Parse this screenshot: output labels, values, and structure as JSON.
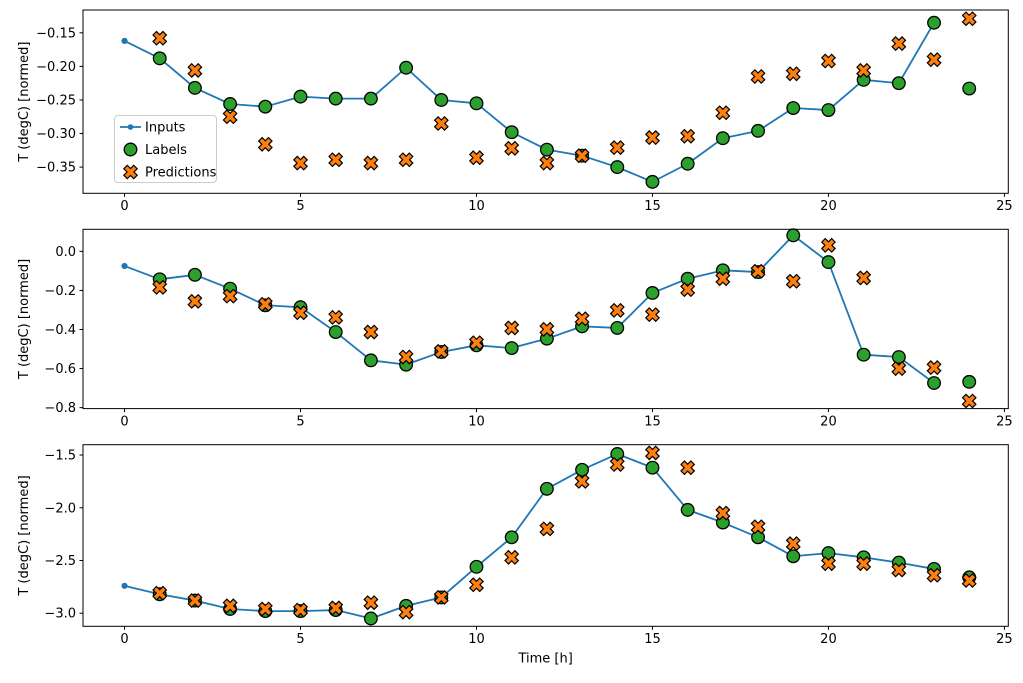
{
  "figure": {
    "xlabel": "Time [h]",
    "ylabel": "T (degC) [normed]"
  },
  "colors": {
    "inputs": "#1f77b4",
    "labels": "#2ca02c",
    "predictions": "#ff7f0e",
    "marker_edge": "#000000",
    "legend_border": "#cccccc",
    "spine": "#000000"
  },
  "legend": {
    "entries": [
      "Inputs",
      "Labels",
      "Predictions"
    ],
    "position": "center-left-of-first-subplot"
  },
  "chart_data": [
    {
      "type": "line",
      "title": "",
      "xlabel": "",
      "ylabel": "T (degC) [normed]",
      "xlim": [
        -1.18,
        25.11
      ],
      "ylim": [
        -0.389,
        -0.116
      ],
      "xticks": [
        0,
        5,
        10,
        15,
        20,
        25
      ],
      "xtick_labels": [
        "0",
        "5",
        "10",
        "15",
        "20",
        "25"
      ],
      "yticks": [
        -0.15,
        -0.2,
        -0.25,
        -0.3,
        -0.35
      ],
      "ytick_labels": [
        "−0.15",
        "−0.20",
        "−0.25",
        "−0.30",
        "−0.35"
      ],
      "grid": false,
      "legend": true,
      "series": [
        {
          "name": "Inputs",
          "kind": "line-dot",
          "color": "#1f77b4",
          "x": [
            0,
            1,
            2,
            3,
            4,
            5,
            6,
            7,
            8,
            9,
            10,
            11,
            12,
            13,
            14,
            15,
            16,
            17,
            18,
            19,
            20,
            21,
            22,
            23
          ],
          "y": [
            -0.162,
            -0.188,
            -0.232,
            -0.256,
            -0.26,
            -0.245,
            -0.248,
            -0.248,
            -0.202,
            -0.25,
            -0.255,
            -0.298,
            -0.324,
            -0.333,
            -0.35,
            -0.372,
            -0.345,
            -0.307,
            -0.296,
            -0.262,
            -0.265,
            -0.22,
            -0.225,
            -0.135
          ]
        },
        {
          "name": "Labels",
          "kind": "scatter-circle",
          "color": "#2ca02c",
          "edge": "#000000",
          "x": [
            1,
            2,
            3,
            4,
            5,
            6,
            7,
            8,
            9,
            10,
            11,
            12,
            13,
            14,
            15,
            16,
            17,
            18,
            19,
            20,
            21,
            22,
            23,
            24
          ],
          "y": [
            -0.188,
            -0.232,
            -0.256,
            -0.26,
            -0.245,
            -0.248,
            -0.248,
            -0.202,
            -0.25,
            -0.255,
            -0.298,
            -0.324,
            -0.333,
            -0.35,
            -0.372,
            -0.345,
            -0.307,
            -0.296,
            -0.262,
            -0.265,
            -0.22,
            -0.225,
            -0.135,
            -0.233
          ]
        },
        {
          "name": "Predictions",
          "kind": "scatter-x",
          "color": "#ff7f0e",
          "edge": "#000000",
          "x": [
            1,
            2,
            3,
            4,
            5,
            6,
            7,
            8,
            9,
            10,
            11,
            12,
            13,
            14,
            15,
            16,
            17,
            18,
            19,
            20,
            21,
            22,
            23,
            24
          ],
          "y": [
            -0.158,
            -0.206,
            -0.275,
            -0.316,
            -0.344,
            -0.339,
            -0.344,
            -0.339,
            -0.285,
            -0.336,
            -0.322,
            -0.344,
            -0.333,
            -0.321,
            -0.306,
            -0.304,
            -0.269,
            -0.215,
            -0.211,
            -0.192,
            -0.206,
            -0.166,
            -0.19,
            -0.129
          ]
        }
      ]
    },
    {
      "type": "line",
      "title": "",
      "xlabel": "",
      "ylabel": "T (degC) [normed]",
      "xlim": [
        -1.18,
        25.11
      ],
      "ylim": [
        -0.805,
        0.113
      ],
      "xticks": [
        0,
        5,
        10,
        15,
        20,
        25
      ],
      "xtick_labels": [
        "0",
        "5",
        "10",
        "15",
        "20",
        "25"
      ],
      "yticks": [
        0.0,
        -0.2,
        -0.4,
        -0.6,
        -0.8
      ],
      "ytick_labels": [
        "0.0",
        "−0.2",
        "−0.4",
        "−0.6",
        "−0.8"
      ],
      "grid": false,
      "legend": false,
      "series": [
        {
          "name": "Inputs",
          "kind": "line-dot",
          "color": "#1f77b4",
          "x": [
            0,
            1,
            2,
            3,
            4,
            5,
            6,
            7,
            8,
            9,
            10,
            11,
            12,
            13,
            14,
            15,
            16,
            17,
            18,
            19,
            20,
            21,
            22,
            23
          ],
          "y": [
            -0.075,
            -0.143,
            -0.12,
            -0.191,
            -0.276,
            -0.286,
            -0.413,
            -0.558,
            -0.58,
            -0.515,
            -0.481,
            -0.495,
            -0.447,
            -0.384,
            -0.392,
            -0.213,
            -0.14,
            -0.097,
            -0.106,
            0.082,
            -0.055,
            -0.529,
            -0.541,
            -0.674
          ]
        },
        {
          "name": "Labels",
          "kind": "scatter-circle",
          "color": "#2ca02c",
          "edge": "#000000",
          "x": [
            1,
            2,
            3,
            4,
            5,
            6,
            7,
            8,
            9,
            10,
            11,
            12,
            13,
            14,
            15,
            16,
            17,
            18,
            19,
            20,
            21,
            22,
            23,
            24
          ],
          "y": [
            -0.143,
            -0.12,
            -0.191,
            -0.276,
            -0.286,
            -0.413,
            -0.558,
            -0.58,
            -0.515,
            -0.481,
            -0.495,
            -0.447,
            -0.384,
            -0.392,
            -0.213,
            -0.14,
            -0.097,
            -0.106,
            0.082,
            -0.055,
            -0.529,
            -0.541,
            -0.674,
            -0.668
          ]
        },
        {
          "name": "Predictions",
          "kind": "scatter-x",
          "color": "#ff7f0e",
          "edge": "#000000",
          "x": [
            1,
            2,
            3,
            4,
            5,
            6,
            7,
            8,
            9,
            10,
            11,
            12,
            13,
            14,
            15,
            16,
            17,
            18,
            19,
            20,
            21,
            22,
            23,
            24
          ],
          "y": [
            -0.184,
            -0.256,
            -0.229,
            -0.271,
            -0.314,
            -0.338,
            -0.413,
            -0.541,
            -0.512,
            -0.468,
            -0.392,
            -0.399,
            -0.345,
            -0.302,
            -0.324,
            -0.196,
            -0.14,
            -0.102,
            -0.153,
            0.031,
            -0.136,
            -0.6,
            -0.595,
            -0.766
          ]
        }
      ]
    },
    {
      "type": "line",
      "title": "",
      "xlabel": "Time [h]",
      "ylabel": "T (degC) [normed]",
      "xlim": [
        -1.18,
        25.11
      ],
      "ylim": [
        -3.124,
        -1.402
      ],
      "xticks": [
        0,
        5,
        10,
        15,
        20,
        25
      ],
      "xtick_labels": [
        "0",
        "5",
        "10",
        "15",
        "20",
        "25"
      ],
      "yticks": [
        -1.5,
        -2.0,
        -2.5,
        -3.0
      ],
      "ytick_labels": [
        "−1.5",
        "−2.0",
        "−2.5",
        "−3.0"
      ],
      "grid": false,
      "legend": false,
      "series": [
        {
          "name": "Inputs",
          "kind": "line-dot",
          "color": "#1f77b4",
          "x": [
            0,
            1,
            2,
            3,
            4,
            5,
            6,
            7,
            8,
            9,
            10,
            11,
            12,
            13,
            14,
            15,
            16,
            17,
            18,
            19,
            20,
            21,
            22,
            23
          ],
          "y": [
            -2.74,
            -2.82,
            -2.88,
            -2.96,
            -2.98,
            -2.98,
            -2.97,
            -3.05,
            -2.93,
            -2.85,
            -2.56,
            -2.28,
            -1.82,
            -1.64,
            -1.49,
            -1.62,
            -2.02,
            -2.14,
            -2.28,
            -2.46,
            -2.43,
            -2.47,
            -2.52,
            -2.58
          ]
        },
        {
          "name": "Labels",
          "kind": "scatter-circle",
          "color": "#2ca02c",
          "edge": "#000000",
          "x": [
            1,
            2,
            3,
            4,
            5,
            6,
            7,
            8,
            9,
            10,
            11,
            12,
            13,
            14,
            15,
            16,
            17,
            18,
            19,
            20,
            21,
            22,
            23,
            24
          ],
          "y": [
            -2.82,
            -2.88,
            -2.96,
            -2.98,
            -2.98,
            -2.97,
            -3.05,
            -2.93,
            -2.85,
            -2.56,
            -2.28,
            -1.82,
            -1.64,
            -1.49,
            -1.62,
            -2.02,
            -2.14,
            -2.28,
            -2.46,
            -2.43,
            -2.47,
            -2.52,
            -2.58,
            -2.66
          ]
        },
        {
          "name": "Predictions",
          "kind": "scatter-x",
          "color": "#ff7f0e",
          "edge": "#000000",
          "x": [
            1,
            2,
            3,
            4,
            5,
            6,
            7,
            8,
            9,
            10,
            11,
            12,
            13,
            14,
            15,
            16,
            17,
            18,
            19,
            20,
            21,
            22,
            23,
            24
          ],
          "y": [
            -2.81,
            -2.88,
            -2.93,
            -2.96,
            -2.97,
            -2.95,
            -2.9,
            -2.99,
            -2.85,
            -2.73,
            -2.47,
            -2.2,
            -1.75,
            -1.59,
            -1.48,
            -1.62,
            -2.05,
            -2.18,
            -2.34,
            -2.53,
            -2.53,
            -2.59,
            -2.64,
            -2.69
          ]
        }
      ]
    }
  ]
}
